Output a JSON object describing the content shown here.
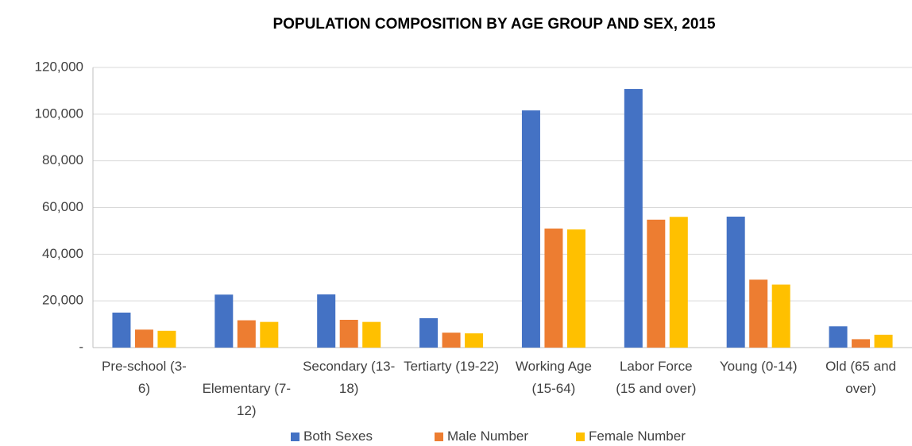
{
  "chart_data": {
    "type": "bar",
    "title": "POPULATION COMPOSITION BY AGE GROUP AND SEX, 2015",
    "categories": [
      "Pre-school (3-6)",
      "Elementary (7-12)",
      "Secondary (13-18)",
      "Tertiarty (19-22)",
      "Working Age (15-64)",
      "Labor Force (15 and over)",
      "Young (0-14)",
      "Old (65 and over)"
    ],
    "series": [
      {
        "name": "Both Sexes",
        "color": "#4472c4",
        "values": [
          15000,
          22700,
          22800,
          12600,
          101600,
          110800,
          56100,
          9100
        ]
      },
      {
        "name": "Male Number",
        "color": "#ed7d31",
        "values": [
          7700,
          11700,
          11900,
          6400,
          51000,
          54800,
          29100,
          3600
        ]
      },
      {
        "name": "Female Number",
        "color": "#ffc000",
        "values": [
          7200,
          11000,
          11000,
          6100,
          50600,
          56000,
          27000,
          5500
        ]
      }
    ],
    "ylim": [
      0,
      120000
    ],
    "yticks": [
      {
        "value": 0,
        "label": "-"
      },
      {
        "value": 20000,
        "label": "20,000"
      },
      {
        "value": 40000,
        "label": "40,000"
      },
      {
        "value": 60000,
        "label": "60,000"
      },
      {
        "value": 80000,
        "label": "80,000"
      },
      {
        "value": 100000,
        "label": "100,000"
      },
      {
        "value": 120000,
        "label": "120,000"
      }
    ],
    "grid": true,
    "legend": "bottom"
  }
}
